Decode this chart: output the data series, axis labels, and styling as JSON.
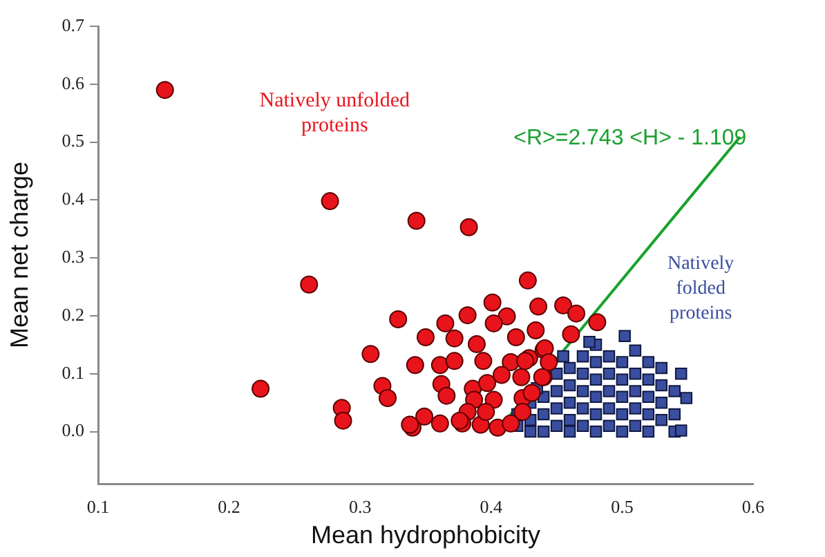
{
  "chart_data": {
    "type": "scatter",
    "xlabel": "Mean hydrophobicity",
    "ylabel": "Mean net charge",
    "xlim": [
      0.1,
      0.6
    ],
    "xticks": [
      0.1,
      0.2,
      0.3,
      0.4,
      0.5,
      0.6
    ],
    "ylim": [
      -0.09,
      0.7
    ],
    "yticks": [
      {
        "value": 0,
        "label": "0.0"
      },
      0.1,
      0.2,
      0.3,
      0.4,
      0.5,
      0.6,
      0.7
    ],
    "grid": false,
    "legend": false,
    "series": [
      {
        "marker": "circle",
        "color": "#e8141b",
        "x": [
          0.151,
          0.277,
          0.343,
          0.383,
          0.261,
          0.428,
          0.224,
          0.329,
          0.308,
          0.317,
          0.321,
          0.286,
          0.287,
          0.35,
          0.365,
          0.372,
          0.382,
          0.401,
          0.412,
          0.436,
          0.402,
          0.342,
          0.361,
          0.372,
          0.389,
          0.394,
          0.419,
          0.434,
          0.415,
          0.429,
          0.362,
          0.366,
          0.386,
          0.397,
          0.408,
          0.423,
          0.387,
          0.402,
          0.424,
          0.382,
          0.361,
          0.349,
          0.34,
          0.378,
          0.392,
          0.405,
          0.415,
          0.424,
          0.44,
          0.44,
          0.455,
          0.465,
          0.481,
          0.461,
          0.441,
          0.444,
          0.439,
          0.426,
          0.431,
          0.376,
          0.338,
          0.396
        ],
        "values": [
          0.59,
          0.398,
          0.364,
          0.353,
          0.254,
          0.261,
          0.074,
          0.194,
          0.134,
          0.079,
          0.058,
          0.041,
          0.019,
          0.163,
          0.187,
          0.161,
          0.201,
          0.223,
          0.199,
          0.216,
          0.187,
          0.115,
          0.115,
          0.122,
          0.151,
          0.122,
          0.163,
          0.175,
          0.12,
          0.127,
          0.082,
          0.062,
          0.074,
          0.084,
          0.098,
          0.094,
          0.055,
          0.055,
          0.058,
          0.034,
          0.014,
          0.026,
          0.007,
          0.014,
          0.012,
          0.007,
          0.014,
          0.034,
          0.141,
          0.094,
          0.218,
          0.204,
          0.189,
          0.168,
          0.144,
          0.12,
          0.094,
          0.122,
          0.067,
          0.019,
          0.012,
          0.034
        ]
      },
      {
        "marker": "square",
        "color": "#3a4ea0",
        "x": [
          0.42,
          0.42,
          0.43,
          0.43,
          0.43,
          0.44,
          0.44,
          0.44,
          0.45,
          0.45,
          0.45,
          0.45,
          0.46,
          0.46,
          0.46,
          0.46,
          0.46,
          0.47,
          0.47,
          0.47,
          0.47,
          0.47,
          0.48,
          0.48,
          0.48,
          0.48,
          0.48,
          0.48,
          0.49,
          0.49,
          0.49,
          0.49,
          0.49,
          0.5,
          0.5,
          0.5,
          0.5,
          0.5,
          0.502,
          0.51,
          0.51,
          0.51,
          0.51,
          0.51,
          0.52,
          0.52,
          0.52,
          0.52,
          0.52,
          0.53,
          0.53,
          0.53,
          0.53,
          0.54,
          0.54,
          0.54,
          0.545,
          0.549,
          0.545,
          0.455,
          0.475,
          0.435
        ],
        "values": [
          0.01,
          0.03,
          0.0,
          0.02,
          0.05,
          0.0,
          0.03,
          0.06,
          0.01,
          0.04,
          0.07,
          0.1,
          0.0,
          0.02,
          0.05,
          0.08,
          0.11,
          0.01,
          0.04,
          0.07,
          0.1,
          0.13,
          0.0,
          0.03,
          0.06,
          0.09,
          0.12,
          0.15,
          0.01,
          0.04,
          0.07,
          0.1,
          0.13,
          0.0,
          0.03,
          0.06,
          0.09,
          0.12,
          0.165,
          0.01,
          0.04,
          0.07,
          0.1,
          0.14,
          0.0,
          0.03,
          0.06,
          0.09,
          0.12,
          0.02,
          0.05,
          0.08,
          0.11,
          0.0,
          0.03,
          0.07,
          0.1,
          0.058,
          0.002,
          0.13,
          0.155,
          0.075
        ]
      },
      {
        "type": "line",
        "marker": "none",
        "line_style": "solid",
        "color": "#1aa12e",
        "x": [
          0.41,
          0.59
        ],
        "values": [
          0.016,
          0.509
        ]
      }
    ],
    "annotations": [
      "Natively unfolded proteins",
      "Natively folded proteins",
      "<R>=2.743 <H> - 1.109"
    ]
  }
}
